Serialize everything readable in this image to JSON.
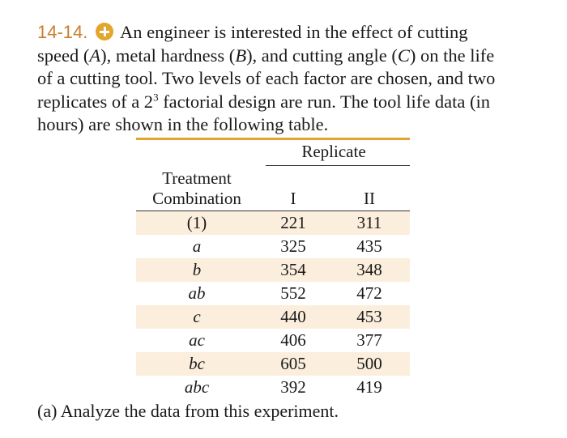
{
  "problem": {
    "number": "14-14.",
    "icon": "plus-circle-icon",
    "accent_color": "#c8802c",
    "icon_color": "#e3a62c",
    "line1": "An engineer is interested in the effect of cutting",
    "line2_before_a": "speed (",
    "factor_a": "A",
    "line2_after_a": "), metal hardness (",
    "factor_b": "B",
    "line2_after_b": "), and cutting angle (",
    "factor_c": "C",
    "line2_after_c": ") on the life",
    "line3": "of a cutting tool. Two levels of each factor are chosen, and two",
    "line4_before_exp": "replicates of a 2",
    "exponent": "3",
    "line4_after_exp": " factorial design are run. The tool life data (in",
    "line5": "hours) are shown in the following table."
  },
  "table": {
    "header_treatment_line1": "Treatment",
    "header_treatment_line2": "Combination",
    "header_replicate": "Replicate",
    "header_rep1": "I",
    "header_rep2": "II",
    "rule_color": "#e0a52f",
    "shade_color": "#fbeedc",
    "rows": [
      {
        "treatment": "(1)",
        "rep1": "221",
        "rep2": "311"
      },
      {
        "treatment": "a",
        "rep1": "325",
        "rep2": "435"
      },
      {
        "treatment": "b",
        "rep1": "354",
        "rep2": "348"
      },
      {
        "treatment": "ab",
        "rep1": "552",
        "rep2": "472"
      },
      {
        "treatment": "c",
        "rep1": "440",
        "rep2": "453"
      },
      {
        "treatment": "ac",
        "rep1": "406",
        "rep2": "377"
      },
      {
        "treatment": "bc",
        "rep1": "605",
        "rep2": "500"
      },
      {
        "treatment": "abc",
        "rep1": "392",
        "rep2": "419"
      }
    ]
  },
  "parts": {
    "a": "(a) Analyze the data from this experiment."
  }
}
